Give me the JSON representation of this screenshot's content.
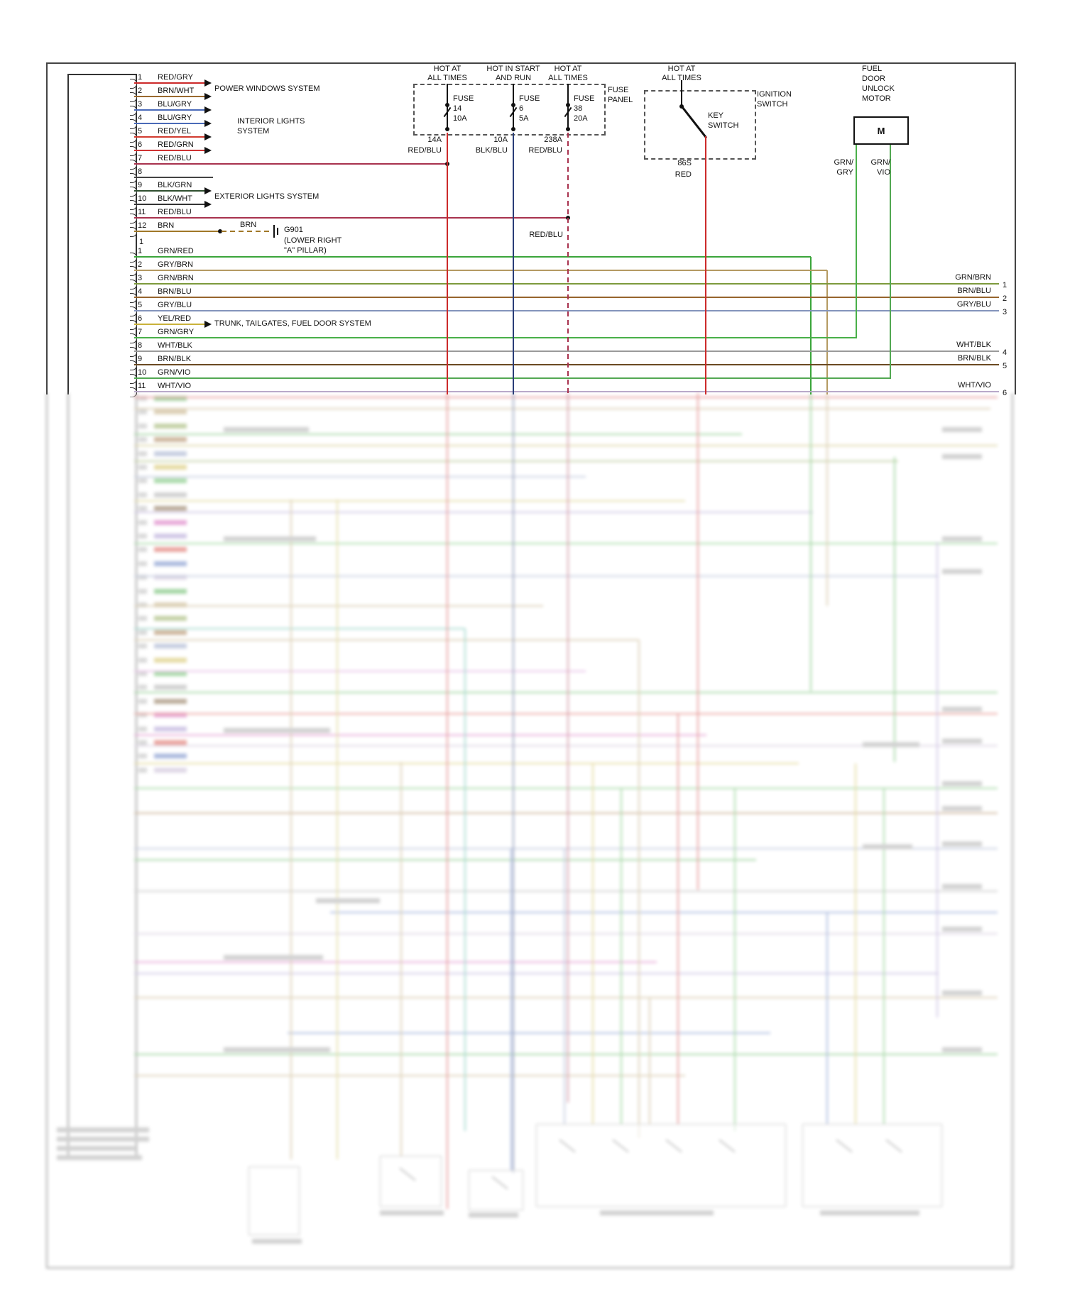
{
  "connector": {
    "lone_number": "1",
    "top_pins": [
      {
        "num": "1",
        "label": "RED/GRY",
        "color": "#cc2a2a"
      },
      {
        "num": "2",
        "label": "BRN/WHT",
        "color": "#9a6a2f"
      },
      {
        "num": "3",
        "label": "BLU/GRY",
        "color": "#4a6ab8"
      },
      {
        "num": "4",
        "label": "BLU/GRY",
        "color": "#4a6ab8"
      },
      {
        "num": "5",
        "label": "RED/YEL",
        "color": "#d23b2f"
      },
      {
        "num": "6",
        "label": "RED/GRN",
        "color": "#cf3333"
      },
      {
        "num": "7",
        "label": "RED/BLU",
        "color": "#a8324e"
      },
      {
        "num": "8",
        "label": "",
        "color": "#444444"
      },
      {
        "num": "9",
        "label": "BLK/GRN",
        "color": "#2f4f2f"
      },
      {
        "num": "10",
        "label": "BLK/WHT",
        "color": "#333333"
      },
      {
        "num": "11",
        "label": "RED/BLU",
        "color": "#a8324e"
      },
      {
        "num": "12",
        "label": "BRN",
        "color": "#a07828"
      }
    ],
    "lower_pins": [
      {
        "num": "1",
        "label": "GRN/RED",
        "color": "#3aa53a"
      },
      {
        "num": "2",
        "label": "GRY/BRN",
        "color": "#b49a62"
      },
      {
        "num": "3",
        "label": "GRN/BRN",
        "color": "#7d9a3c"
      },
      {
        "num": "4",
        "label": "BRN/BLU",
        "color": "#96642d"
      },
      {
        "num": "5",
        "label": "GRY/BLU",
        "color": "#8494bc"
      },
      {
        "num": "6",
        "label": "YEL/RED",
        "color": "#c9b23a"
      },
      {
        "num": "7",
        "label": "GRN/GRY",
        "color": "#49b049"
      },
      {
        "num": "8",
        "label": "WHT/BLK",
        "color": "#9a9a9a"
      },
      {
        "num": "9",
        "label": "BRN/BLK",
        "color": "#6b4a22"
      },
      {
        "num": "10",
        "label": "GRN/VIO",
        "color": "#52a852"
      },
      {
        "num": "11",
        "label": "WHT/VIO",
        "color": "#b9a9c9"
      }
    ]
  },
  "systems": {
    "power_windows": "POWER WINDOWS SYSTEM",
    "interior_1": "INTERIOR LIGHTS",
    "interior_2": "SYSTEM",
    "exterior": "EXTERIOR LIGHTS SYSTEM",
    "trunk": "TRUNK, TAILGATES, FUEL DOOR SYSTEM"
  },
  "ground": {
    "bus": "BRN",
    "id": "G901",
    "loc1": "(LOWER RIGHT",
    "loc2": "\"A\" PILLAR)"
  },
  "fuse_panel": {
    "label1": "FUSE",
    "label2": "PANEL",
    "headers": [
      [
        "HOT AT",
        "ALL TIMES"
      ],
      [
        "HOT IN START",
        "AND RUN"
      ],
      [
        "HOT AT",
        "ALL TIMES"
      ]
    ],
    "fuses": [
      {
        "name": "FUSE",
        "id": "14",
        "amp": "10A",
        "out": "14A",
        "wire": "RED/BLU",
        "wire_color": "#cc2a2a",
        "dashed": false
      },
      {
        "name": "FUSE",
        "id": "6",
        "amp": "5A",
        "out": "10A",
        "wire": "BLK/BLU",
        "wire_color": "#2a3e78",
        "dashed": false
      },
      {
        "name": "FUSE",
        "id": "38",
        "amp": "20A",
        "out": "238A",
        "wire": "RED/BLU",
        "wire_color": "#a8324e",
        "dashed": true
      }
    ]
  },
  "mid_wire_label": "RED/BLU",
  "ignition": {
    "header": [
      "HOT AT",
      "ALL TIMES"
    ],
    "name": [
      "IGNITION",
      "SWITCH"
    ],
    "key": [
      "KEY",
      "SWITCH"
    ],
    "out": "86S",
    "wire": "RED",
    "wire_color": "#cc2a2a"
  },
  "motor": {
    "name": [
      "FUEL",
      "DOOR",
      "UNLOCK",
      "MOTOR"
    ],
    "symbol": "M",
    "wire1": [
      "GRN/",
      "GRY"
    ],
    "wire1_color": "#49b049",
    "wire2": [
      "GRN/",
      "VIO"
    ],
    "wire2_color": "#52a852"
  },
  "right_exits": [
    {
      "num": "1",
      "label": "GRN/BRN"
    },
    {
      "num": "2",
      "label": "BRN/BLU"
    },
    {
      "num": "3",
      "label": "GRY/BLU"
    },
    {
      "num": "4",
      "label": "WHT/BLK"
    },
    {
      "num": "5",
      "label": "BRN/BLK"
    },
    {
      "num": "6",
      "label": "WHT/VIO"
    }
  ]
}
